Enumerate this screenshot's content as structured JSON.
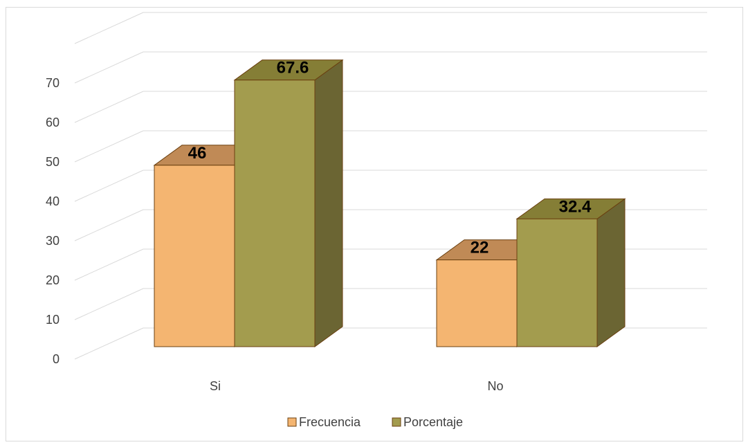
{
  "chart_data": {
    "type": "bar",
    "style": "3d-clustered-column",
    "categories": [
      "Si",
      "No"
    ],
    "series": [
      {
        "name": "Frecuencia",
        "values": [
          46,
          22
        ],
        "labels": [
          "46",
          "22"
        ],
        "color": "#F4B571",
        "color_top": "#C08A56"
      },
      {
        "name": "Porcentaje",
        "values": [
          67.6,
          32.4
        ],
        "labels": [
          "67.6",
          "32.4"
        ],
        "color": "#A39C4E",
        "color_top": "#857E36",
        "color_side": "#6B6533"
      }
    ],
    "y_ticks": [
      "0",
      "10",
      "20",
      "30",
      "40",
      "50",
      "60",
      "70"
    ],
    "ylim": [
      0,
      80
    ],
    "grid": true,
    "legend_position": "bottom",
    "edge_color": "#6B4010"
  }
}
